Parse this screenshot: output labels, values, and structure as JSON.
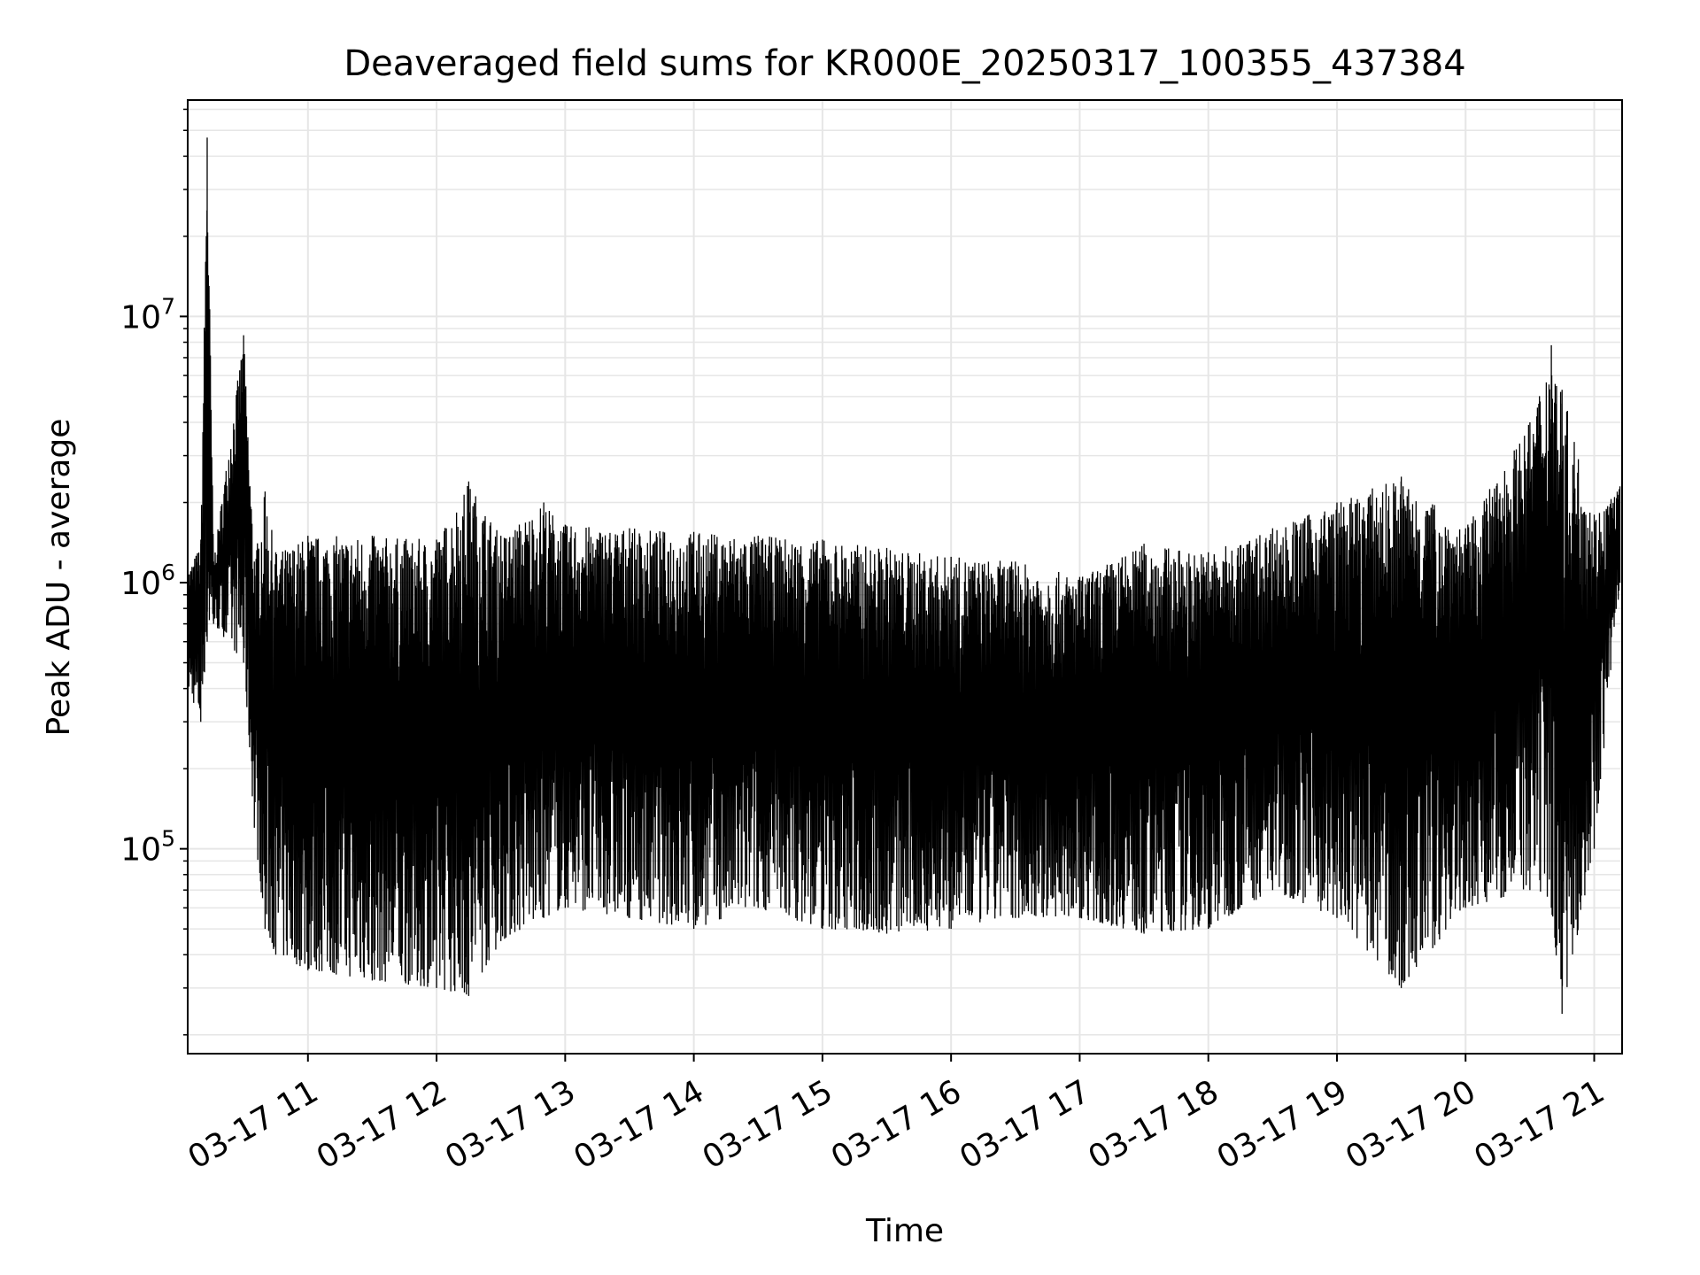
{
  "chart_data": {
    "type": "line",
    "title": "Deaveraged field sums for KR000E_20250317_100355_437384",
    "xlabel": "Time",
    "ylabel": "Peak ADU - average",
    "y_scale": "log",
    "ylim": [
      17000,
      65000000
    ],
    "xlim": [
      "2025-03-17 10:03:55",
      "2025-03-17 21:13:00"
    ],
    "x_ticks": [
      {
        "value": "2025-03-17 11:00",
        "label": "03-17 11"
      },
      {
        "value": "2025-03-17 12:00",
        "label": "03-17 12"
      },
      {
        "value": "2025-03-17 13:00",
        "label": "03-17 13"
      },
      {
        "value": "2025-03-17 14:00",
        "label": "03-17 14"
      },
      {
        "value": "2025-03-17 15:00",
        "label": "03-17 15"
      },
      {
        "value": "2025-03-17 16:00",
        "label": "03-17 16"
      },
      {
        "value": "2025-03-17 17:00",
        "label": "03-17 17"
      },
      {
        "value": "2025-03-17 18:00",
        "label": "03-17 18"
      },
      {
        "value": "2025-03-17 19:00",
        "label": "03-17 19"
      },
      {
        "value": "2025-03-17 20:00",
        "label": "03-17 20"
      },
      {
        "value": "2025-03-17 21:00",
        "label": "03-17 21"
      }
    ],
    "y_ticks": [
      {
        "value": 100000,
        "base": "10",
        "exp": "5"
      },
      {
        "value": 1000000,
        "base": "10",
        "exp": "6"
      },
      {
        "value": 10000000,
        "base": "10",
        "exp": "7"
      }
    ],
    "grid": true,
    "grid_color": "#e6e6e6",
    "line_color": "#000000",
    "series": [
      {
        "x": [
          "2025-03-17 10:04",
          "2025-03-17 10:10",
          "2025-03-17 10:13",
          "2025-03-17 10:16",
          "2025-03-17 10:30",
          "2025-03-17 10:35",
          "2025-03-17 10:40",
          "2025-03-17 10:45",
          "2025-03-17 11:00",
          "2025-03-17 11:30",
          "2025-03-17 12:00",
          "2025-03-17 12:15",
          "2025-03-17 12:30",
          "2025-03-17 12:50",
          "2025-03-17 13:00",
          "2025-03-17 13:30",
          "2025-03-17 14:00",
          "2025-03-17 14:30",
          "2025-03-17 15:00",
          "2025-03-17 15:30",
          "2025-03-17 16:00",
          "2025-03-17 16:30",
          "2025-03-17 17:00",
          "2025-03-17 17:30",
          "2025-03-17 18:00",
          "2025-03-17 18:30",
          "2025-03-17 19:00",
          "2025-03-17 19:30",
          "2025-03-17 20:00",
          "2025-03-17 20:30",
          "2025-03-17 20:40",
          "2025-03-17 20:45",
          "2025-03-17 21:00",
          "2025-03-17 21:12"
        ],
        "y_high": [
          1100000,
          1400000,
          47000000,
          1200000,
          8500000,
          1200000,
          2200000,
          1300000,
          1500000,
          1500000,
          1450000,
          2400000,
          1500000,
          2000000,
          1650000,
          1600000,
          1550000,
          1500000,
          1450000,
          1350000,
          1250000,
          1200000,
          1050000,
          1400000,
          1300000,
          1600000,
          2000000,
          2500000,
          1600000,
          4000000,
          7800000,
          5300000,
          1800000,
          2300000
        ],
        "y_low": [
          400000,
          300000,
          600000,
          700000,
          500000,
          120000,
          50000,
          40000,
          35000,
          32000,
          30000,
          28000,
          45000,
          55000,
          60000,
          55000,
          50000,
          60000,
          50000,
          48000,
          50000,
          55000,
          55000,
          48000,
          50000,
          70000,
          55000,
          30000,
          60000,
          70000,
          60000,
          24000,
          100000,
          1000000
        ]
      }
    ]
  }
}
